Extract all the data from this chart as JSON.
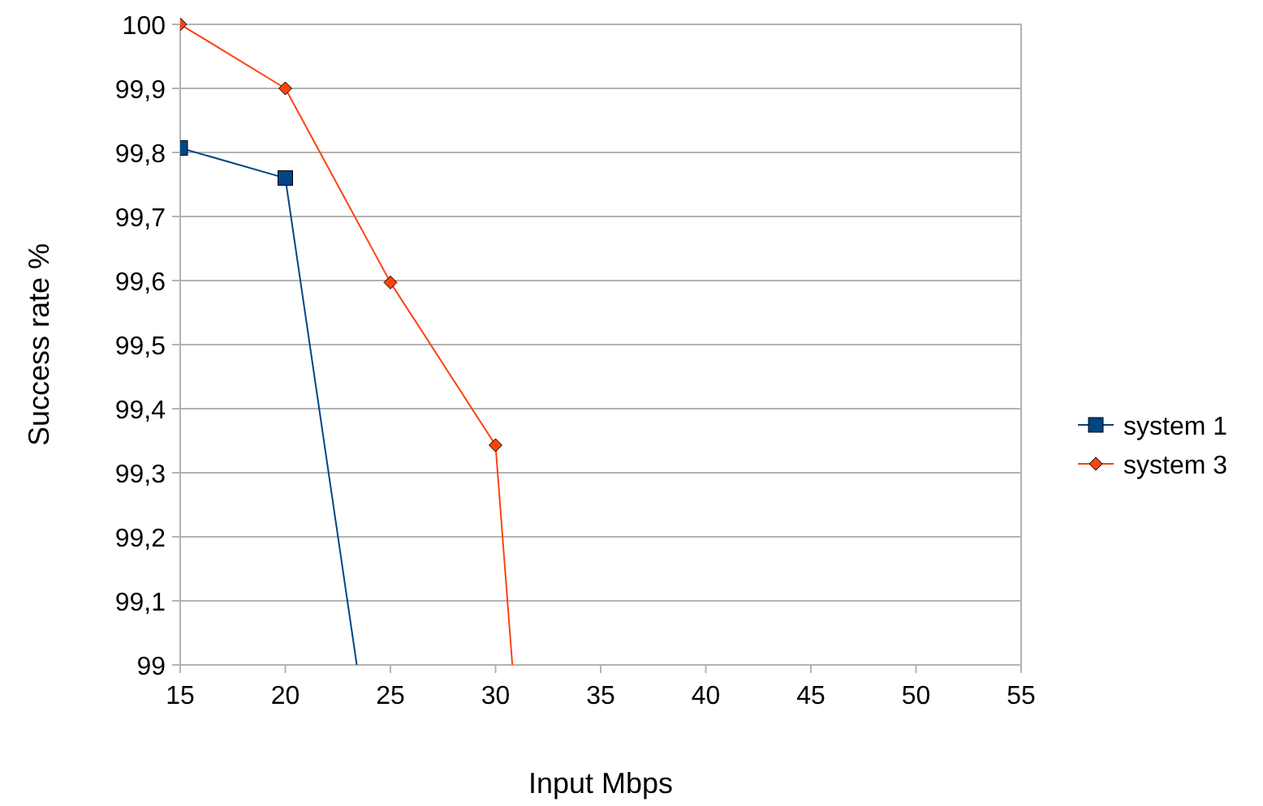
{
  "chart_data": {
    "type": "line",
    "xlabel": "Input Mbps",
    "ylabel": "Success rate %",
    "xlim": [
      15,
      55
    ],
    "xticks": [
      15,
      20,
      25,
      30,
      35,
      40,
      45,
      50,
      55
    ],
    "ylim": [
      99,
      100
    ],
    "yticks": [
      99,
      {
        "value": 99.1,
        "label": "99,1"
      },
      {
        "value": 99.2,
        "label": "99,2"
      },
      {
        "value": 99.3,
        "label": "99,3"
      },
      {
        "value": 99.4,
        "label": "99,4"
      },
      {
        "value": 99.5,
        "label": "99,5"
      },
      {
        "value": 99.6,
        "label": "99,6"
      },
      {
        "value": 99.7,
        "label": "99,7"
      },
      {
        "value": 99.8,
        "label": "99,8"
      },
      {
        "value": 99.9,
        "label": "99,9"
      },
      100
    ],
    "grid": "y",
    "legend": "right",
    "series": [
      {
        "name": "system 1",
        "color": "#004586",
        "marker": "square",
        "x": [
          15,
          20,
          23.4
        ],
        "values": [
          99.807,
          99.76,
          99
        ]
      },
      {
        "name": "system 3",
        "color": "#ff420e",
        "marker": "diamond",
        "x": [
          15,
          20,
          25,
          30,
          30.8
        ],
        "values": [
          100,
          99.9,
          99.597,
          99.343,
          99
        ]
      }
    ]
  }
}
